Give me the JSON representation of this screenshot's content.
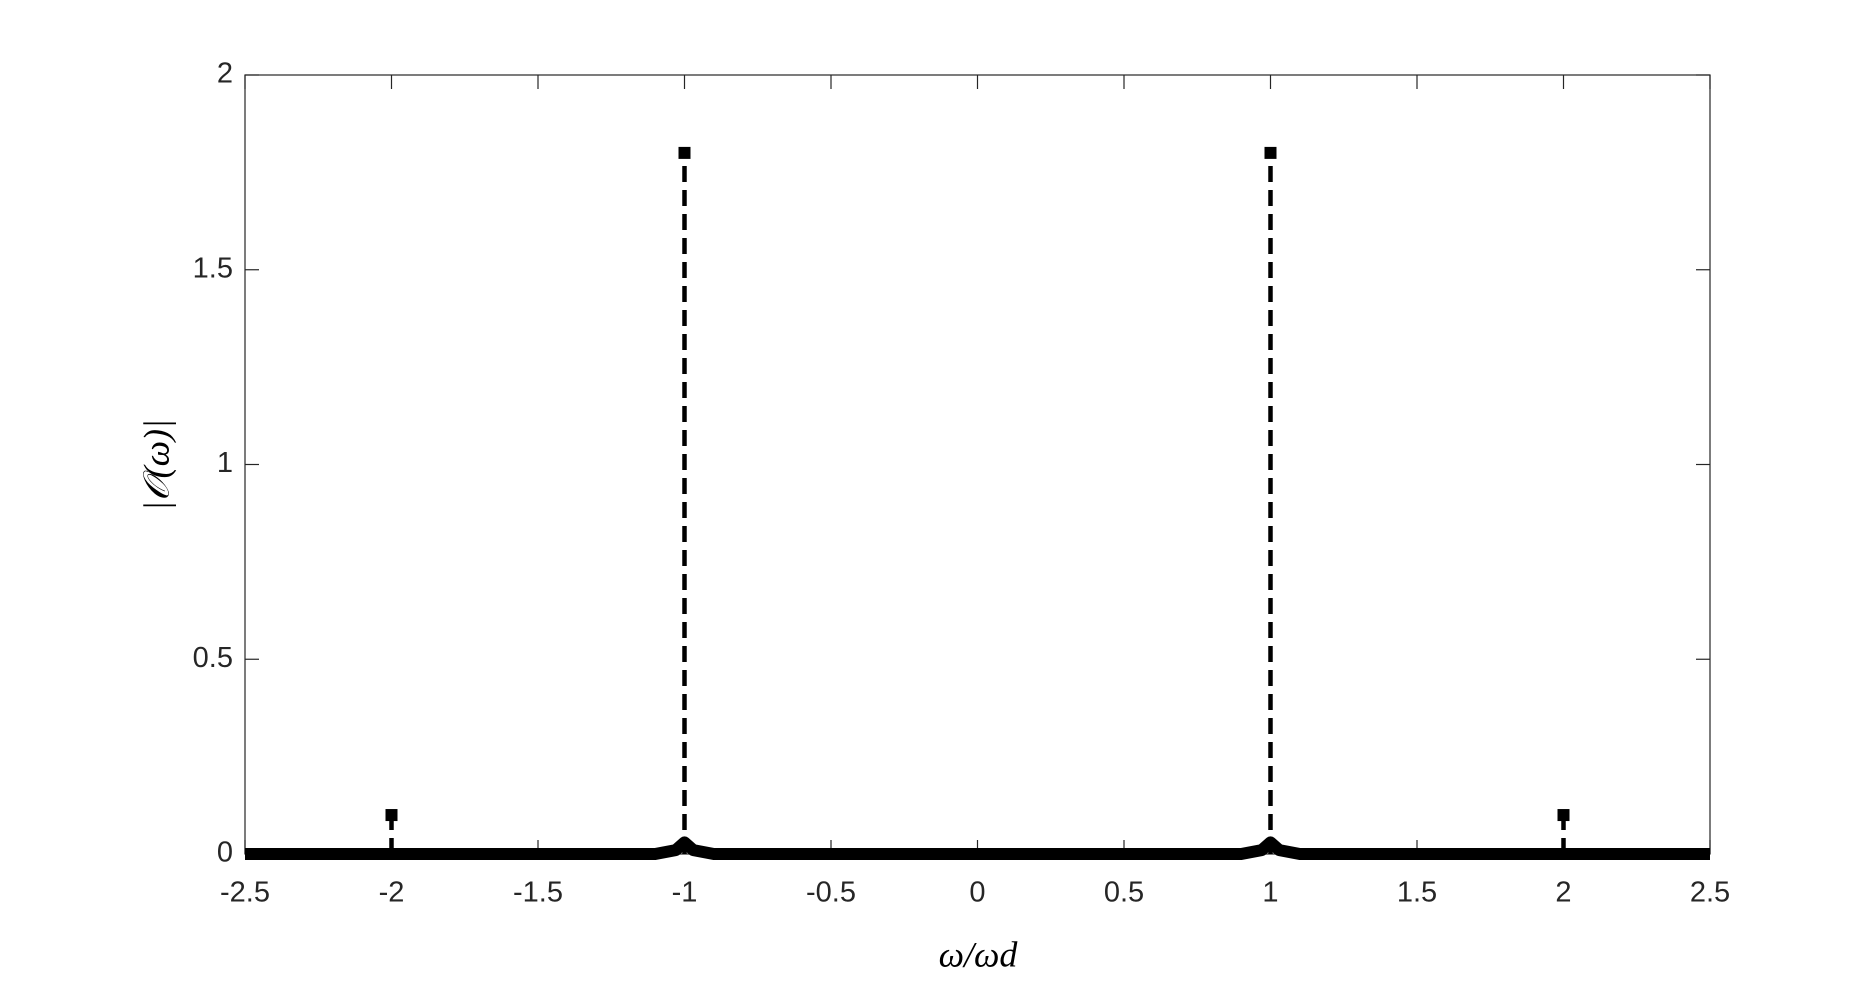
{
  "chart_data": {
    "type": "stem",
    "xlabel": "ω/ωd",
    "ylabel": "|𝒪(ω)|",
    "xlim": [
      -2.5,
      2.5
    ],
    "ylim": [
      0,
      2
    ],
    "xticks": [
      -2.5,
      -2,
      -1.5,
      -1,
      -0.5,
      0,
      0.5,
      1,
      1.5,
      2,
      2.5
    ],
    "yticks": [
      0,
      0.5,
      1,
      1.5,
      2
    ],
    "color": "#000000",
    "series": [
      {
        "type": "stem",
        "x": [
          -2,
          -1,
          1,
          2
        ],
        "values": [
          0.1,
          1.8,
          1.8,
          0.1
        ]
      },
      {
        "type": "line",
        "x": [
          -2.5,
          -1.1,
          -1.03,
          -1,
          -0.97,
          -0.9,
          0.9,
          0.97,
          1,
          1.03,
          1.1,
          2.5
        ],
        "values": [
          0,
          0,
          0.01,
          0.03,
          0.01,
          0,
          0,
          0.01,
          0.03,
          0.01,
          0,
          0
        ]
      }
    ]
  }
}
